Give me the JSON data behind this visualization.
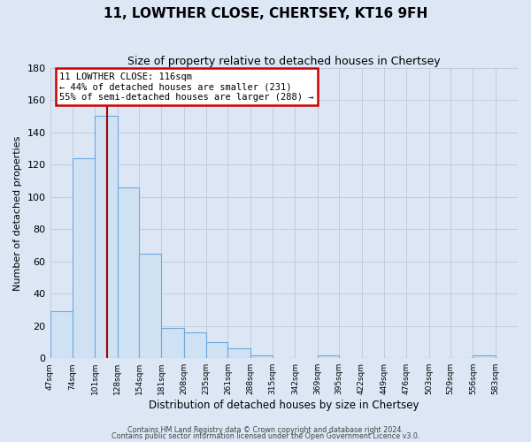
{
  "title": "11, LOWTHER CLOSE, CHERTSEY, KT16 9FH",
  "subtitle": "Size of property relative to detached houses in Chertsey",
  "xlabel": "Distribution of detached houses by size in Chertsey",
  "ylabel": "Number of detached properties",
  "bin_labels": [
    "47sqm",
    "74sqm",
    "101sqm",
    "128sqm",
    "154sqm",
    "181sqm",
    "208sqm",
    "235sqm",
    "261sqm",
    "288sqm",
    "315sqm",
    "342sqm",
    "369sqm",
    "395sqm",
    "422sqm",
    "449sqm",
    "476sqm",
    "503sqm",
    "529sqm",
    "556sqm",
    "583sqm"
  ],
  "bar_heights": [
    29,
    124,
    150,
    106,
    65,
    19,
    16,
    10,
    6,
    2,
    0,
    0,
    2,
    0,
    0,
    0,
    0,
    0,
    0,
    2
  ],
  "bar_color": "#cfe2f3",
  "bar_edge_color": "#6fa8dc",
  "grid_color": "#c0c8d8",
  "background_color": "#dce6f5",
  "property_line_x": 116,
  "property_line_color": "#aa0000",
  "annotation_line1": "11 LOWTHER CLOSE: 116sqm",
  "annotation_line2": "← 44% of detached houses are smaller (231)",
  "annotation_line3": "55% of semi-detached houses are larger (288) →",
  "annotation_box_color": "#ffffff",
  "annotation_border_color": "#cc0000",
  "ylim": [
    0,
    180
  ],
  "yticks": [
    0,
    20,
    40,
    60,
    80,
    100,
    120,
    140,
    160,
    180
  ],
  "footer1": "Contains HM Land Registry data © Crown copyright and database right 2024.",
  "footer2": "Contains public sector information licensed under the Open Government Licence v3.0.",
  "bin_edges": [
    47,
    74,
    101,
    128,
    154,
    181,
    208,
    235,
    261,
    288,
    315,
    342,
    369,
    395,
    422,
    449,
    476,
    503,
    529,
    556,
    583
  ]
}
